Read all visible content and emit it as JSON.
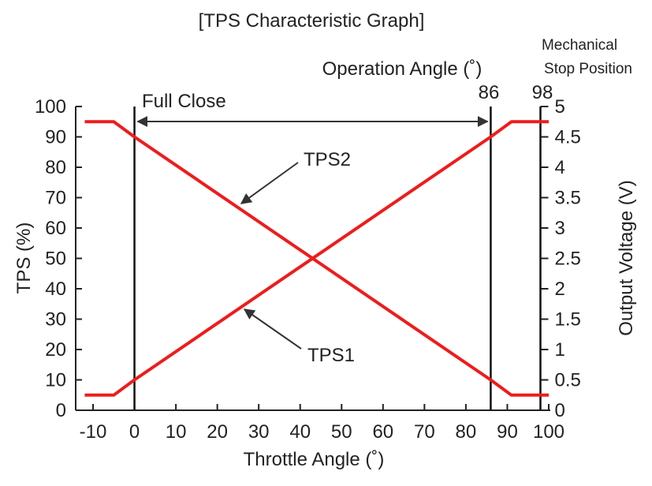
{
  "chart_data": {
    "type": "line",
    "title": "[TPS Characteristic Graph]",
    "xlabel": "Throttle Angle (˚)",
    "ylabel_left": "TPS (%)",
    "ylabel_right": "Output Voltage (V)",
    "xlim": [
      -10,
      100
    ],
    "ylim_left": [
      0,
      100
    ],
    "ylim_right": [
      0,
      5
    ],
    "x_ticks": [
      "-10",
      "0",
      "10",
      "20",
      "30",
      "40",
      "50",
      "60",
      "70",
      "80",
      "90",
      "100"
    ],
    "y_ticks_left": [
      "0",
      "10",
      "20",
      "30",
      "40",
      "50",
      "60",
      "70",
      "80",
      "90",
      "100"
    ],
    "y_ticks_right": [
      "0",
      "0.5",
      "1",
      "1.5",
      "2",
      "2.5",
      "3",
      "3.5",
      "4",
      "4.5",
      "5"
    ],
    "grid": false,
    "series": [
      {
        "name": "TPS1",
        "color": "#ee1c1c",
        "points": [
          [
            -12,
            5
          ],
          [
            -5,
            5
          ],
          [
            0,
            10
          ],
          [
            86,
            90
          ],
          [
            91,
            95
          ],
          [
            100,
            95
          ]
        ]
      },
      {
        "name": "TPS2",
        "color": "#ee1c1c",
        "points": [
          [
            -12,
            95
          ],
          [
            -5,
            95
          ],
          [
            0,
            90
          ],
          [
            86,
            10
          ],
          [
            91,
            5
          ],
          [
            100,
            5
          ]
        ]
      }
    ],
    "vertical_lines": [
      {
        "x": 0,
        "label": "Full Close"
      },
      {
        "x": 86,
        "label": "86"
      },
      {
        "x": 98,
        "label": "98"
      }
    ],
    "range_arrow": {
      "from": 0,
      "to": 86
    },
    "annotations": {
      "operation_angle": "Operation Angle (˚)",
      "mech_line1": "Mechanical",
      "mech_line2": "Stop Position",
      "full_close": "Full Close",
      "marker_86": "86",
      "marker_98": "98",
      "tps1_label": "TPS1",
      "tps2_label": "TPS2"
    }
  }
}
